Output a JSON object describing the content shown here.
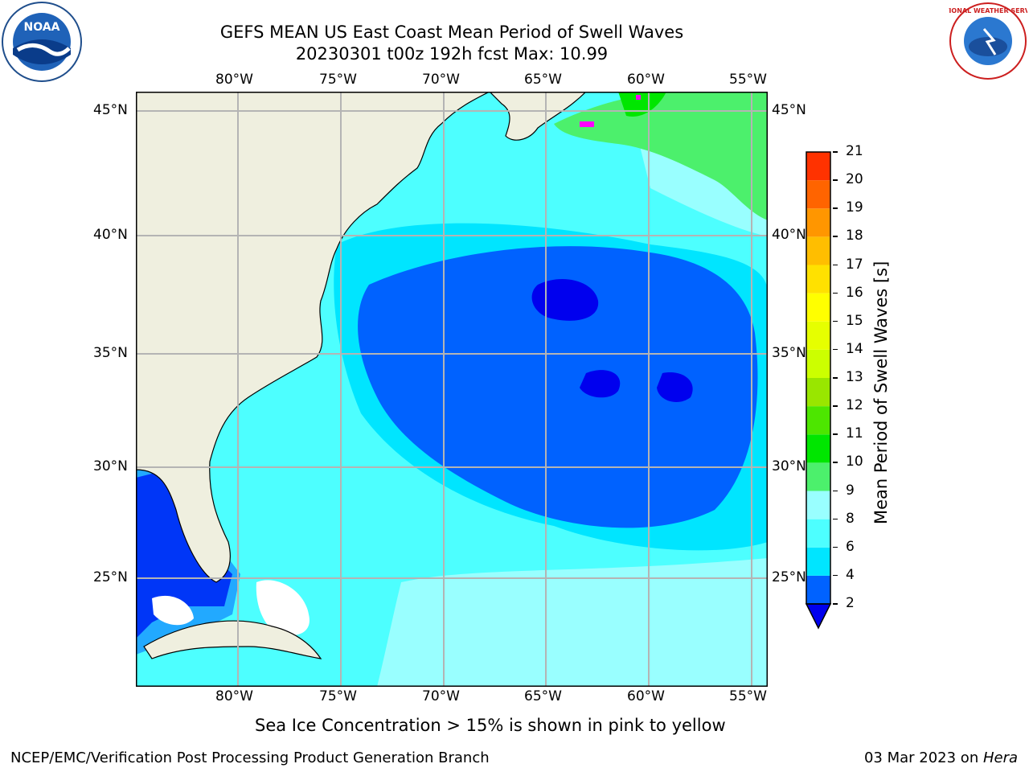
{
  "header": {
    "title_line1": "GEFS MEAN US East Coast Mean Period of Swell Waves",
    "title_line2": "20230301 t00z 192h fcst   Max: 10.99"
  },
  "logos": {
    "left": "noaa-logo",
    "right": "national-weather-service-logo",
    "left_text": "NOAA",
    "right_text": "NATIONAL WEATHER SERVICE"
  },
  "map": {
    "lon_labels": [
      "80°W",
      "75°W",
      "70°W",
      "65°W",
      "60°W",
      "55°W"
    ],
    "lat_labels": [
      "45°N",
      "40°N",
      "35°N",
      "30°N",
      "25°N"
    ],
    "colors": {
      "land": "#efefdf",
      "grid": "#b4b4b4",
      "coast": "#000000",
      "masked": "#ffffff"
    }
  },
  "colorbar": {
    "label": "Mean Period of Swell Waves [s]",
    "ticks": [
      "2",
      "4",
      "6",
      "8",
      "9",
      "10",
      "11",
      "12",
      "13",
      "14",
      "15",
      "16",
      "17",
      "18",
      "19",
      "20",
      "21"
    ],
    "colors": [
      "#0062ff",
      "#00e5ff",
      "#4dffff",
      "#99ffff",
      "#4cf06c",
      "#00e600",
      "#4de600",
      "#99e600",
      "#ccff00",
      "#e6ff00",
      "#ffff00",
      "#ffe100",
      "#ffbe00",
      "#ff9600",
      "#ff6400",
      "#ff3200",
      "#ff0000"
    ],
    "under_color": "#0000ee"
  },
  "notice": "Sea Ice Concentration > 15% is shown in pink to yellow",
  "footer": {
    "left": "NCEP/EMC/Verification Post Processing Product Generation Branch",
    "right_date": "03 Mar 2023 on ",
    "right_host": "Hera"
  }
}
